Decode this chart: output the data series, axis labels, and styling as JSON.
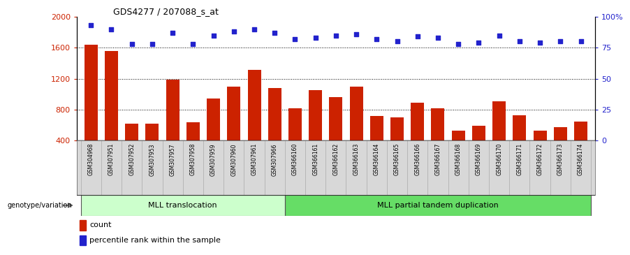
{
  "title": "GDS4277 / 207088_s_at",
  "samples": [
    "GSM304968",
    "GSM307951",
    "GSM307952",
    "GSM307953",
    "GSM307957",
    "GSM307958",
    "GSM307959",
    "GSM307960",
    "GSM307961",
    "GSM307966",
    "GSM366160",
    "GSM366161",
    "GSM366162",
    "GSM366163",
    "GSM366164",
    "GSM366165",
    "GSM366166",
    "GSM366167",
    "GSM366168",
    "GSM366169",
    "GSM366170",
    "GSM366171",
    "GSM366172",
    "GSM366173",
    "GSM366174"
  ],
  "counts": [
    1640,
    1560,
    620,
    620,
    1190,
    635,
    940,
    1100,
    1310,
    1080,
    815,
    1050,
    960,
    1100,
    720,
    700,
    890,
    820,
    530,
    590,
    910,
    730,
    530,
    570,
    640
  ],
  "percentile_ranks": [
    93,
    90,
    78,
    78,
    87,
    78,
    85,
    88,
    90,
    87,
    82,
    83,
    85,
    86,
    82,
    80,
    84,
    83,
    78,
    79,
    85,
    80,
    79,
    80,
    80
  ],
  "groups": [
    {
      "label": "MLL translocation",
      "start": 0,
      "end": 9,
      "color": "#ccffcc"
    },
    {
      "label": "MLL partial tandem duplication",
      "start": 10,
      "end": 24,
      "color": "#66dd66"
    }
  ],
  "ylim_left": [
    400,
    2000
  ],
  "ylim_right": [
    0,
    100
  ],
  "yticks_left": [
    400,
    800,
    1200,
    1600,
    2000
  ],
  "yticks_right": [
    0,
    25,
    50,
    75,
    100
  ],
  "ytick_right_labels": [
    "0",
    "25",
    "50",
    "75",
    "100%"
  ],
  "bar_color": "#cc2200",
  "dot_color": "#2222cc",
  "bg_color": "#ffffff",
  "group_border_color": "#222222",
  "legend_count_color": "#cc2200",
  "legend_dot_color": "#2222cc",
  "genotype_label": "genotype/variation",
  "group0_split": 9,
  "n_samples": 25
}
